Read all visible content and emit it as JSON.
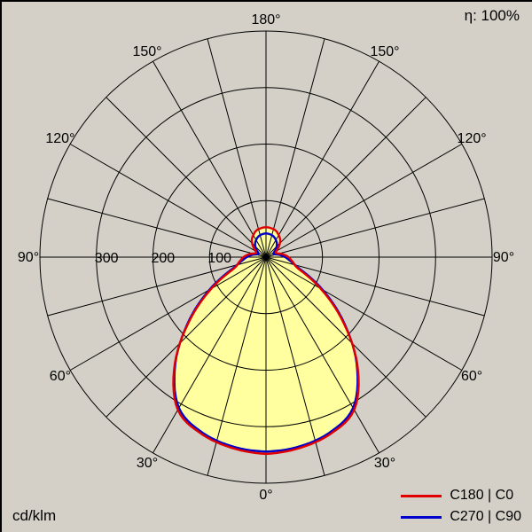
{
  "chart_data": {
    "type": "polar-photometric",
    "unit": "cd/klm",
    "efficiency": "η: 100%",
    "zero_direction": "down",
    "radial_max": 400,
    "grid_circles": [
      100,
      200,
      300,
      400
    ],
    "spoke_step_deg": 15,
    "grid_color": "#000000",
    "fill_color": "#ffffa0",
    "radial_ticks": [
      {
        "value": 100,
        "label": "100"
      },
      {
        "value": 200,
        "label": "200"
      },
      {
        "value": 300,
        "label": "300"
      }
    ],
    "angle_labels": [
      {
        "deg": 0,
        "text": "0°"
      },
      {
        "deg": 30,
        "text": "30°"
      },
      {
        "deg": 60,
        "text": "60°"
      },
      {
        "deg": 90,
        "text": "90°"
      },
      {
        "deg": 120,
        "text": "120°"
      },
      {
        "deg": 150,
        "text": "150°"
      },
      {
        "deg": 180,
        "text": "180°"
      }
    ],
    "gamma_deg": [
      0,
      10,
      20,
      30,
      40,
      50,
      60,
      70,
      80,
      90,
      100,
      110,
      120,
      130,
      140,
      150,
      160,
      170,
      180
    ],
    "series": [
      {
        "name": "C180 | C0",
        "color": "#e00000",
        "values": [
          348,
          343,
          333,
          312,
          252,
          178,
          112,
          62,
          48,
          40,
          30,
          20,
          21,
          30,
          39,
          45,
          50,
          52,
          53
        ]
      },
      {
        "name": "C270 | C90",
        "color": "#0000cc",
        "values": [
          344,
          340,
          330,
          308,
          250,
          180,
          116,
          66,
          45,
          34,
          24,
          15,
          16,
          23,
          30,
          35,
          39,
          41,
          42
        ]
      }
    ]
  }
}
